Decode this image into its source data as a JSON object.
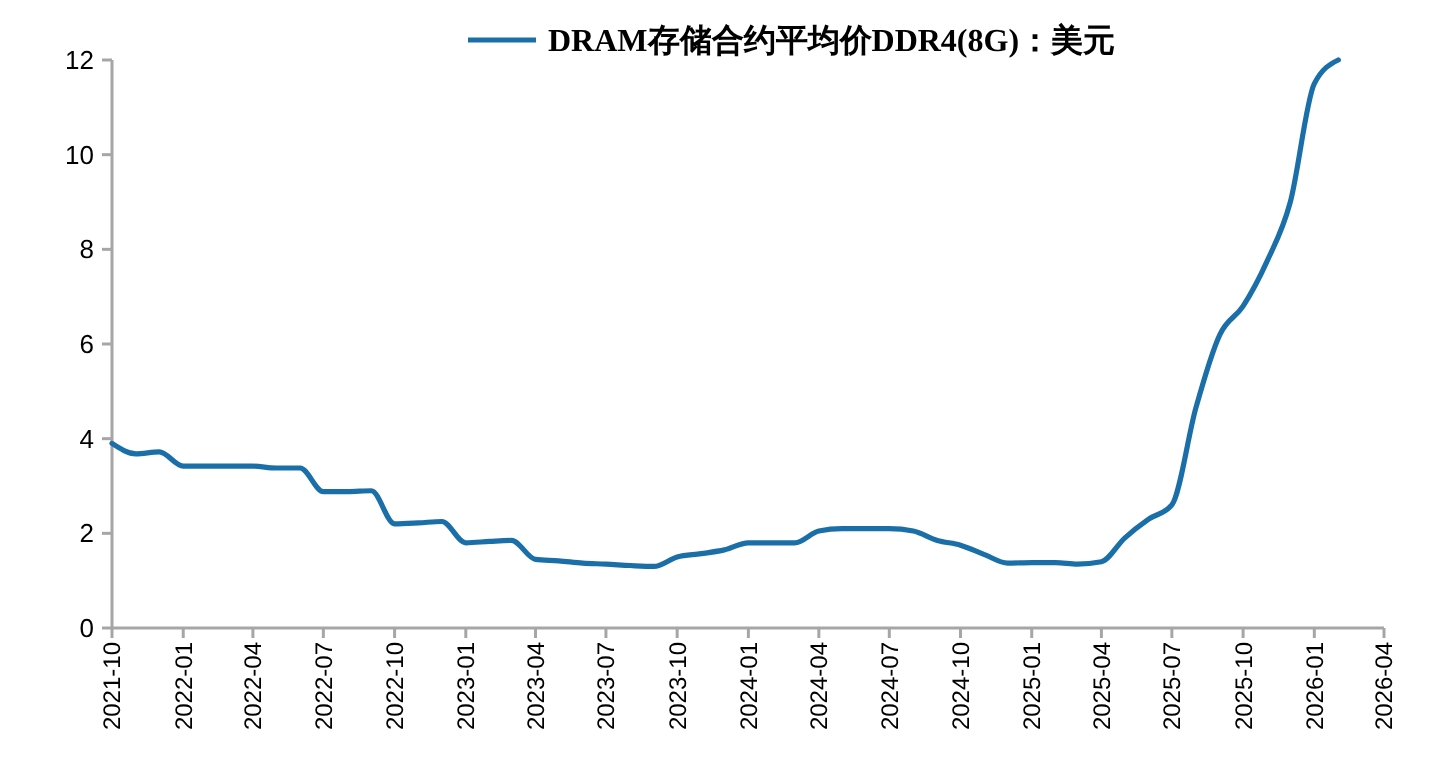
{
  "chart_data": {
    "type": "line",
    "x": [
      "2021-10",
      "2021-11",
      "2021-12",
      "2022-01",
      "2022-02",
      "2022-03",
      "2022-04",
      "2022-05",
      "2022-06",
      "2022-07",
      "2022-08",
      "2022-09",
      "2022-10",
      "2022-11",
      "2022-12",
      "2023-01",
      "2023-02",
      "2023-03",
      "2023-04",
      "2023-05",
      "2023-06",
      "2023-07",
      "2023-08",
      "2023-09",
      "2023-10",
      "2023-11",
      "2023-12",
      "2024-01",
      "2024-02",
      "2024-03",
      "2024-04",
      "2024-05",
      "2024-06",
      "2024-07",
      "2024-08",
      "2024-09",
      "2024-10",
      "2024-11",
      "2024-12",
      "2025-01",
      "2025-02",
      "2025-03",
      "2025-04",
      "2025-05",
      "2025-06",
      "2025-07",
      "2025-08",
      "2025-09",
      "2025-10",
      "2025-11",
      "2025-12",
      "2026-01",
      "2026-02"
    ],
    "series": [
      {
        "name": "DRAM存储合约平均价DDR4(8G)：美元",
        "color": "#1a6fa8",
        "values": [
          3.9,
          3.68,
          3.72,
          3.42,
          3.42,
          3.42,
          3.42,
          3.38,
          3.38,
          2.88,
          2.88,
          2.9,
          2.2,
          2.22,
          2.25,
          1.8,
          1.83,
          1.85,
          1.45,
          1.42,
          1.37,
          1.35,
          1.32,
          1.3,
          1.5,
          1.57,
          1.65,
          1.8,
          1.8,
          1.8,
          2.05,
          2.1,
          2.1,
          2.1,
          2.05,
          1.85,
          1.75,
          1.55,
          1.37,
          1.38,
          1.38,
          1.35,
          1.4,
          1.9,
          2.3,
          2.6,
          4.65,
          6.2,
          6.8,
          7.75,
          9.0,
          11.5,
          12
        ]
      }
    ],
    "xlim": [
      "2021-10",
      "2026-04"
    ],
    "xticks": [
      "2021-10",
      "2022-01",
      "2022-04",
      "2022-07",
      "2022-10",
      "2023-01",
      "2023-04",
      "2023-07",
      "2023-10",
      "2024-01",
      "2024-04",
      "2024-07",
      "2024-10",
      "2025-01",
      "2025-04",
      "2025-07",
      "2025-10",
      "2026-01",
      "2026-04"
    ],
    "ylim": [
      0,
      12
    ],
    "yticks": [
      0,
      2,
      4,
      6,
      8,
      10,
      12
    ],
    "grid": false,
    "legend": "top",
    "marker": "none",
    "line_style": "solid"
  }
}
